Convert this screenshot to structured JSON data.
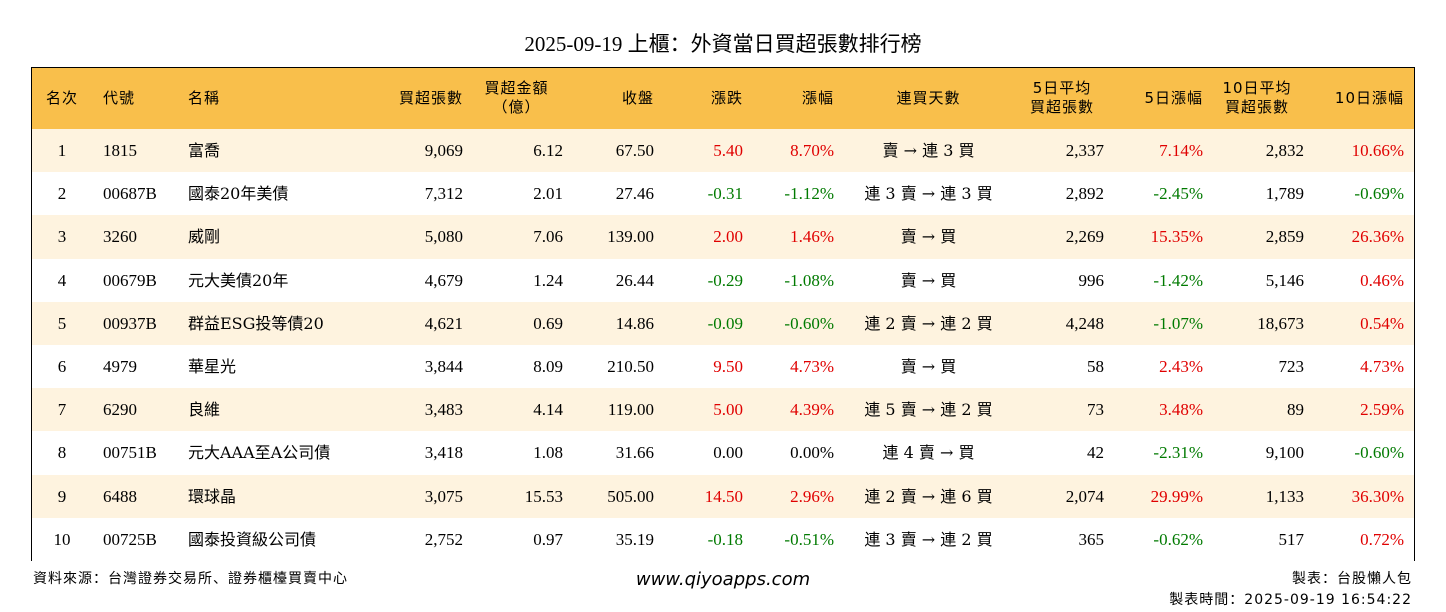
{
  "title": "2025-09-19 上櫃：外資當日買超張數排行榜",
  "table": {
    "headers": [
      "名次",
      "代號",
      "名稱",
      "買超張數",
      "買超金額\n（億）",
      "收盤",
      "漲跌",
      "漲幅",
      "連買天數",
      "5日平均\n買超張數",
      "5日漲幅",
      "10日平均\n買超張數",
      "10日漲幅"
    ],
    "rows": [
      [
        "1",
        "1815",
        "富喬",
        "9,069",
        "6.12",
        "67.50",
        "5.40",
        "8.70%",
        "賣 → 連 3 買",
        "2,337",
        "7.14%",
        "2,832",
        "10.66%"
      ],
      [
        "2",
        "00687B",
        "國泰20年美債",
        "7,312",
        "2.01",
        "27.46",
        "-0.31",
        "-1.12%",
        "連 3 賣 → 連 3 買",
        "2,892",
        "-2.45%",
        "1,789",
        "-0.69%"
      ],
      [
        "3",
        "3260",
        "威剛",
        "5,080",
        "7.06",
        "139.00",
        "2.00",
        "1.46%",
        "賣 → 買",
        "2,269",
        "15.35%",
        "2,859",
        "26.36%"
      ],
      [
        "4",
        "00679B",
        "元大美債20年",
        "4,679",
        "1.24",
        "26.44",
        "-0.29",
        "-1.08%",
        "賣 → 買",
        "996",
        "-1.42%",
        "5,146",
        "0.46%"
      ],
      [
        "5",
        "00937B",
        "群益ESG投等債20",
        "4,621",
        "0.69",
        "14.86",
        "-0.09",
        "-0.60%",
        "連 2 賣 → 連 2 買",
        "4,248",
        "-1.07%",
        "18,673",
        "0.54%"
      ],
      [
        "6",
        "4979",
        "華星光",
        "3,844",
        "8.09",
        "210.50",
        "9.50",
        "4.73%",
        "賣 → 買",
        "58",
        "2.43%",
        "723",
        "4.73%"
      ],
      [
        "7",
        "6290",
        "良維",
        "3,483",
        "4.14",
        "119.00",
        "5.00",
        "4.39%",
        "連 5 賣 → 連 2 買",
        "73",
        "3.48%",
        "89",
        "2.59%"
      ],
      [
        "8",
        "00751B",
        "元大AAA至A公司債",
        "3,418",
        "1.08",
        "31.66",
        "0.00",
        "0.00%",
        "連 4 賣 → 買",
        "42",
        "-2.31%",
        "9,100",
        "-0.60%"
      ],
      [
        "9",
        "6488",
        "環球晶",
        "3,075",
        "15.53",
        "505.00",
        "14.50",
        "2.96%",
        "連 2 賣 → 連 6 買",
        "2,074",
        "29.99%",
        "1,133",
        "36.30%"
      ],
      [
        "10",
        "00725B",
        "國泰投資級公司債",
        "2,752",
        "0.97",
        "35.19",
        "-0.18",
        "-0.51%",
        "連 3 賣 → 連 2 買",
        "365",
        "-0.62%",
        "517",
        "0.72%"
      ]
    ]
  },
  "footer": {
    "source": "資料來源：台灣證券交易所、證券櫃檯買賣中心",
    "site": "www.qiyoapps.com",
    "author": "製表：台股懶人包",
    "time": "製表時間：2025-09-19 16:54:22"
  }
}
